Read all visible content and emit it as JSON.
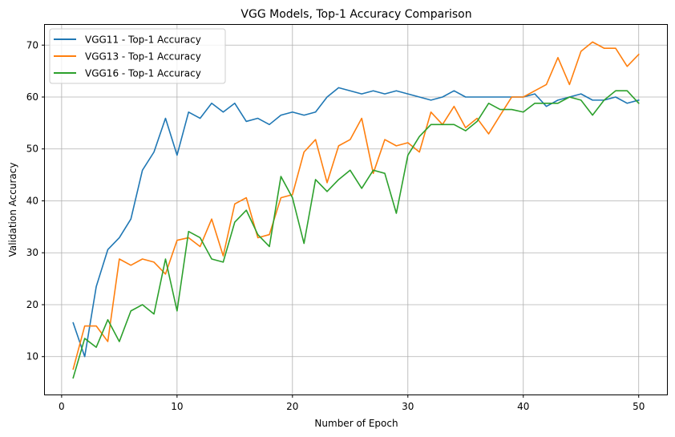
{
  "chart_data": {
    "type": "line",
    "title": "VGG Models, Top-1 Accuracy Comparison",
    "xlabel": "Number of Epoch",
    "ylabel": "Validation Accuracy",
    "xlim": [
      -1.45,
      52.45
    ],
    "ylim": [
      2.7,
      73.9
    ],
    "xticks": [
      0,
      10,
      20,
      30,
      40,
      50
    ],
    "yticks": [
      10,
      20,
      30,
      40,
      50,
      60,
      70
    ],
    "grid": true,
    "legend_position": "top-left",
    "x": [
      1,
      2,
      3,
      4,
      5,
      6,
      7,
      8,
      9,
      10,
      11,
      12,
      13,
      14,
      15,
      16,
      17,
      18,
      19,
      20,
      21,
      22,
      23,
      24,
      25,
      26,
      27,
      28,
      29,
      30,
      31,
      32,
      33,
      34,
      35,
      36,
      37,
      38,
      39,
      40,
      41,
      42,
      43,
      44,
      45,
      46,
      47,
      48,
      49,
      50
    ],
    "series": [
      {
        "name": "VGG11 - Top-1 Accuracy",
        "color": "#1f77b4",
        "values": [
          16.5,
          10.0,
          23.5,
          30.6,
          32.9,
          36.5,
          45.9,
          49.4,
          55.9,
          48.8,
          57.1,
          55.9,
          58.8,
          57.1,
          58.8,
          55.3,
          55.9,
          54.7,
          56.5,
          57.1,
          56.5,
          57.1,
          60.0,
          61.8,
          61.2,
          60.6,
          61.2,
          60.6,
          61.2,
          60.6,
          60.0,
          59.4,
          60.0,
          61.2,
          60.0,
          60.0,
          60.0,
          60.0,
          60.0,
          60.0,
          60.6,
          58.2,
          59.4,
          60.0,
          60.6,
          59.4,
          59.4,
          60.0,
          58.8,
          59.4
        ]
      },
      {
        "name": "VGG13 - Top-1 Accuracy",
        "color": "#ff7f0e",
        "values": [
          7.6,
          15.9,
          15.9,
          12.9,
          28.8,
          27.6,
          28.8,
          28.2,
          25.9,
          32.4,
          32.9,
          31.2,
          36.5,
          29.4,
          39.4,
          40.6,
          32.9,
          33.5,
          40.6,
          41.2,
          49.4,
          51.8,
          43.5,
          50.6,
          51.8,
          55.9,
          45.3,
          51.8,
          50.6,
          51.2,
          49.4,
          57.1,
          54.7,
          58.2,
          54.1,
          55.9,
          52.9,
          56.5,
          60.0,
          60.0,
          61.2,
          62.4,
          67.6,
          62.4,
          68.8,
          70.6,
          69.4,
          69.4,
          65.9,
          68.2
        ]
      },
      {
        "name": "VGG16 - Top-1 Accuracy",
        "color": "#2ca02c",
        "values": [
          5.9,
          13.5,
          11.8,
          17.1,
          12.9,
          18.8,
          20.0,
          18.2,
          28.8,
          18.8,
          34.1,
          32.9,
          28.8,
          28.2,
          35.9,
          38.2,
          33.5,
          31.2,
          44.7,
          40.6,
          31.8,
          44.1,
          41.8,
          44.1,
          45.9,
          42.4,
          45.9,
          45.3,
          37.6,
          48.8,
          52.4,
          54.7,
          54.7,
          54.7,
          53.5,
          55.3,
          58.8,
          57.6,
          57.6,
          57.1,
          58.8,
          58.8,
          58.8,
          60.0,
          59.4,
          56.5,
          59.4,
          61.2,
          61.2,
          58.8
        ]
      }
    ]
  }
}
